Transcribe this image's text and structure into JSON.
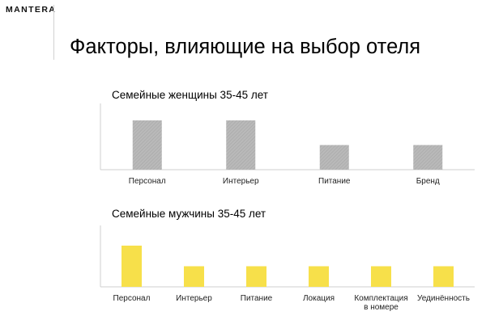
{
  "header": {
    "logo": "MANTERA",
    "title": "Факторы, влияющие на выбор отеля"
  },
  "chart_data": [
    {
      "type": "bar",
      "title": "Семейные женщины 35-45 лет",
      "categories": [
        "Персонал",
        "Интерьер",
        "Питание",
        "Бренд"
      ],
      "values": [
        2,
        2,
        1,
        1
      ],
      "color": "#b3b3b3",
      "pattern": "hatched-gray",
      "ylim": [
        0,
        2
      ],
      "xlabel": "",
      "ylabel": "",
      "grid": false,
      "legend": "none"
    },
    {
      "type": "bar",
      "title": "Семейные мужчины 35-45 лет",
      "categories": [
        "Персонал",
        "Интерьер",
        "Питание",
        "Локация",
        "Комплектация в номере",
        "Уединённость"
      ],
      "values": [
        2,
        1,
        1,
        1,
        1,
        1
      ],
      "color": "#f7e04a",
      "ylim": [
        0,
        2
      ],
      "xlabel": "",
      "ylabel": "",
      "grid": false,
      "legend": "none"
    }
  ]
}
